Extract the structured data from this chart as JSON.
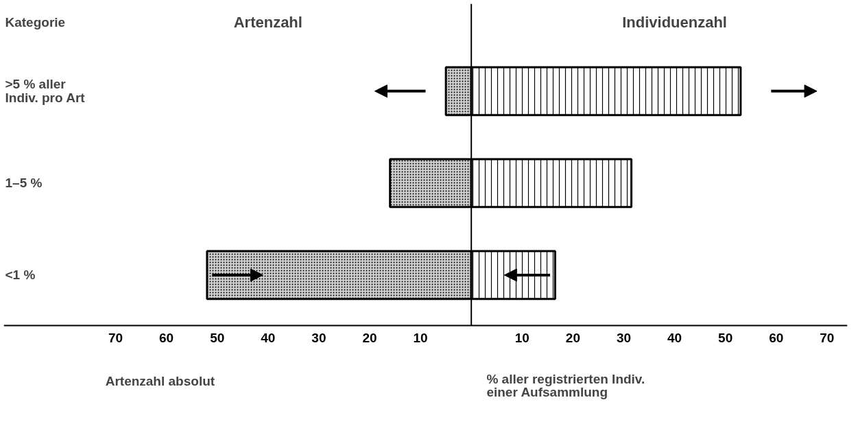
{
  "chart_data": {
    "type": "bar",
    "orientation": "horizontal",
    "stacked": true,
    "categories": [
      ">5 % aller\nIndiv. pro Art",
      "1–5 %",
      "<1 %"
    ],
    "series": [
      {
        "name": "Artenzahl",
        "color": "#d0d0d0",
        "values": [
          -5,
          -16,
          -52
        ]
      },
      {
        "name": "Individuenzahl",
        "color": "#ffffff",
        "values": [
          53,
          31.5,
          16.5
        ]
      }
    ],
    "xlim": [
      -92,
      74
    ],
    "xticks": [
      {
        "value": -70,
        "label": "70"
      },
      {
        "value": -60,
        "label": "60"
      },
      {
        "value": -50,
        "label": "50"
      },
      {
        "value": -40,
        "label": "40"
      },
      {
        "value": -30,
        "label": "30"
      },
      {
        "value": -20,
        "label": "20"
      },
      {
        "value": -10,
        "label": "10"
      },
      10,
      20,
      30,
      40,
      50,
      60,
      70
    ],
    "ref_lines": [
      {
        "axis": "x",
        "value": 0
      }
    ],
    "annotations": [
      "Kategorie",
      "Artenzahl absolut",
      "% aller registrierten Indiv.\neiner Aufsammlung"
    ],
    "grid": false,
    "legend": false
  }
}
